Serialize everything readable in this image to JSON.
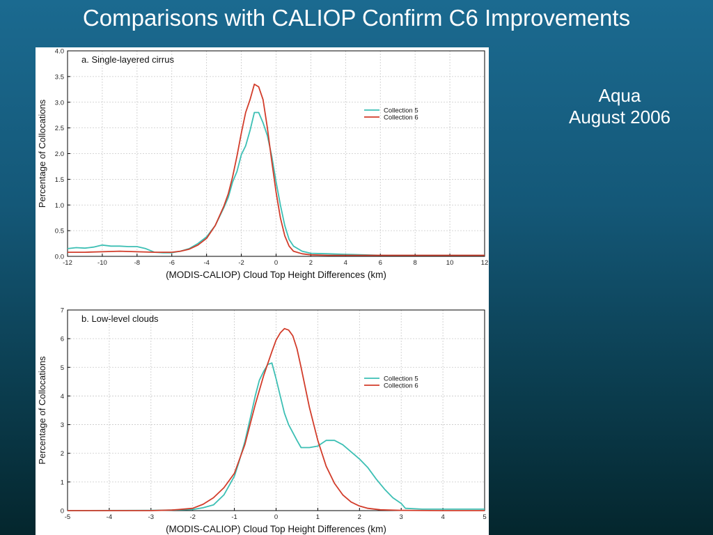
{
  "slide": {
    "title": "Comparisons with CALIOP Confirm C6 Improvements",
    "side_note": {
      "line1": "Aqua",
      "line2": "August 2006"
    }
  },
  "colors": {
    "collection5": "#3cbfb4",
    "collection6": "#d23c2a"
  },
  "chart_data": [
    {
      "type": "line",
      "title": "a. Single-layered cirrus",
      "xlabel": "(MODIS-CALIOP) Cloud Top Height Differences (km)",
      "ylabel": "Percentage of Collocations",
      "xlim": [
        -12,
        12
      ],
      "ylim": [
        0,
        4.0
      ],
      "xticks": [
        -12,
        -10,
        -8,
        -6,
        -4,
        -2,
        0,
        2,
        4,
        6,
        8,
        10,
        12
      ],
      "yticks": [
        "0.0",
        "0.5",
        "1.0",
        "1.5",
        "2.0",
        "2.5",
        "3.0",
        "3.5",
        "4.0"
      ],
      "grid": true,
      "legend_position": "upper-right",
      "series": [
        {
          "name": "Collection 5",
          "color": "#3cbfb4",
          "x": [
            -12,
            -11.5,
            -11,
            -10.5,
            -10,
            -9.5,
            -9,
            -8.5,
            -8,
            -7.5,
            -7,
            -6.5,
            -6,
            -5.5,
            -5,
            -4.5,
            -4,
            -3.5,
            -3,
            -2.75,
            -2.5,
            -2.25,
            -2,
            -1.75,
            -1.5,
            -1.25,
            -1,
            -0.75,
            -0.5,
            -0.25,
            0,
            0.25,
            0.5,
            0.75,
            1,
            1.5,
            2,
            3,
            4,
            5,
            6,
            8,
            10,
            12
          ],
          "y": [
            0.15,
            0.17,
            0.16,
            0.18,
            0.22,
            0.2,
            0.2,
            0.19,
            0.19,
            0.15,
            0.08,
            0.07,
            0.07,
            0.1,
            0.15,
            0.25,
            0.38,
            0.6,
            0.95,
            1.15,
            1.45,
            1.65,
            1.98,
            2.15,
            2.45,
            2.8,
            2.8,
            2.6,
            2.35,
            1.95,
            1.45,
            1.0,
            0.6,
            0.33,
            0.2,
            0.1,
            0.06,
            0.05,
            0.04,
            0.03,
            0.02,
            0.02,
            0.02,
            0.02
          ]
        },
        {
          "name": "Collection 6",
          "color": "#d23c2a",
          "x": [
            -12,
            -11,
            -10,
            -9,
            -8,
            -7,
            -6,
            -5.5,
            -5,
            -4.5,
            -4,
            -3.5,
            -3,
            -2.75,
            -2.5,
            -2.25,
            -2,
            -1.75,
            -1.5,
            -1.25,
            -1,
            -0.75,
            -0.5,
            -0.25,
            0,
            0.25,
            0.5,
            0.75,
            1,
            1.5,
            2,
            3,
            4,
            5,
            6,
            8,
            10,
            12
          ],
          "y": [
            0.08,
            0.08,
            0.09,
            0.1,
            0.09,
            0.08,
            0.08,
            0.1,
            0.14,
            0.22,
            0.35,
            0.6,
            0.98,
            1.22,
            1.55,
            1.95,
            2.4,
            2.8,
            3.05,
            3.35,
            3.3,
            3.05,
            2.5,
            1.85,
            1.25,
            0.75,
            0.4,
            0.2,
            0.1,
            0.05,
            0.03,
            0.02,
            0.02,
            0.02,
            0.02,
            0.02,
            0.02,
            0.02
          ]
        }
      ]
    },
    {
      "type": "line",
      "title": "b. Low-level clouds",
      "xlabel": "(MODIS-CALIOP) Cloud Top Height Differences (km)",
      "ylabel": "Percentage of Collocations",
      "xlim": [
        -5,
        5
      ],
      "ylim": [
        0,
        7
      ],
      "xticks": [
        -5,
        -4,
        -3,
        -2,
        -1,
        0,
        1,
        2,
        3,
        4,
        5
      ],
      "yticks": [
        "0",
        "1",
        "2",
        "3",
        "4",
        "5",
        "6",
        "7"
      ],
      "grid": true,
      "legend_position": "upper-right",
      "series": [
        {
          "name": "Collection 5",
          "color": "#3cbfb4",
          "x": [
            -5,
            -3,
            -2.5,
            -2,
            -1.75,
            -1.5,
            -1.25,
            -1,
            -0.9,
            -0.75,
            -0.6,
            -0.5,
            -0.4,
            -0.3,
            -0.2,
            -0.1,
            0,
            0.1,
            0.2,
            0.3,
            0.5,
            0.6,
            0.8,
            1.0,
            1.2,
            1.4,
            1.6,
            1.8,
            2.0,
            2.2,
            2.4,
            2.6,
            2.8,
            3.0,
            3.1,
            3.5,
            4,
            4.5,
            5
          ],
          "y": [
            0.0,
            0.01,
            0.02,
            0.04,
            0.1,
            0.2,
            0.55,
            1.2,
            1.65,
            2.4,
            3.35,
            4.0,
            4.55,
            4.85,
            5.1,
            5.15,
            4.6,
            4.0,
            3.4,
            3.0,
            2.45,
            2.2,
            2.2,
            2.25,
            2.45,
            2.45,
            2.3,
            2.05,
            1.8,
            1.5,
            1.1,
            0.75,
            0.45,
            0.25,
            0.08,
            0.05,
            0.05,
            0.05,
            0.05
          ]
        },
        {
          "name": "Collection 6",
          "color": "#d23c2a",
          "x": [
            -5,
            -3,
            -2.5,
            -2,
            -1.75,
            -1.5,
            -1.25,
            -1,
            -0.75,
            -0.5,
            -0.3,
            -0.1,
            0,
            0.1,
            0.2,
            0.3,
            0.4,
            0.5,
            0.6,
            0.8,
            1.0,
            1.2,
            1.4,
            1.6,
            1.8,
            2.0,
            2.2,
            2.5,
            3.0,
            4.0,
            5.0
          ],
          "y": [
            0.0,
            0.0,
            0.02,
            0.08,
            0.22,
            0.45,
            0.8,
            1.3,
            2.3,
            3.7,
            4.7,
            5.55,
            5.95,
            6.2,
            6.35,
            6.3,
            6.1,
            5.65,
            5.0,
            3.6,
            2.45,
            1.55,
            0.95,
            0.55,
            0.3,
            0.16,
            0.08,
            0.03,
            0.01,
            0.0,
            0.0
          ]
        }
      ]
    }
  ]
}
